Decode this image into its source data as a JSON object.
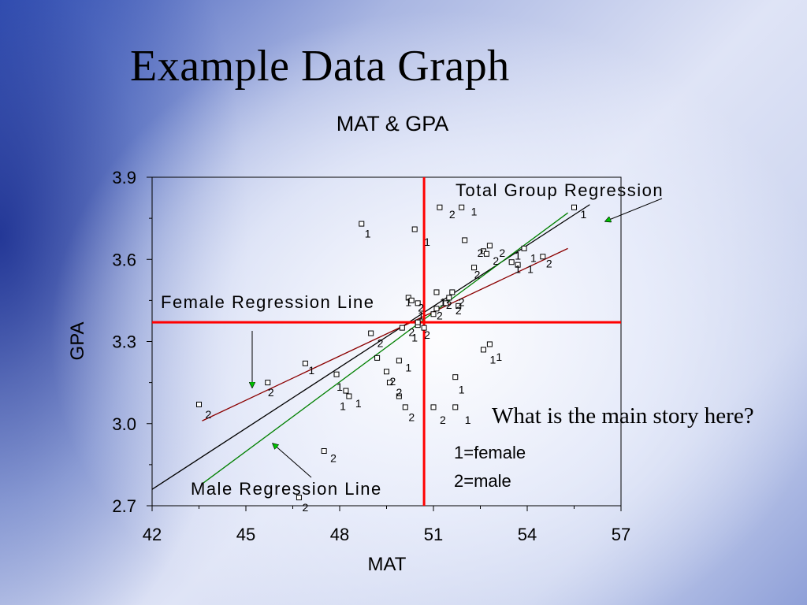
{
  "slide": {
    "title": "Example Data Graph",
    "question": "What is the main story here?",
    "legend": [
      "1=female",
      "2=male"
    ]
  },
  "chart_data": {
    "type": "scatter",
    "title": "MAT & GPA",
    "xlabel": "MAT",
    "ylabel": "GPA",
    "xlim": [
      42,
      57
    ],
    "ylim": [
      2.7,
      3.9
    ],
    "xticks": [
      "42",
      "45",
      "48",
      "51",
      "54",
      "57"
    ],
    "yticks": [
      "2.7",
      "3.0",
      "3.3",
      "3.6",
      "3.9"
    ],
    "grid": false,
    "series": [
      {
        "name": "1",
        "points": [
          [
            48.7,
            3.73
          ],
          [
            50.4,
            3.71
          ],
          [
            51.9,
            3.79
          ],
          [
            55.5,
            3.79
          ],
          [
            51.5,
            3.46
          ],
          [
            52.6,
            3.63
          ],
          [
            53.5,
            3.59
          ],
          [
            53.7,
            3.58
          ],
          [
            54.5,
            3.61
          ],
          [
            50.2,
            3.46
          ],
          [
            50.3,
            3.45
          ],
          [
            50.5,
            3.44
          ],
          [
            51.4,
            3.44
          ],
          [
            50.0,
            3.35
          ],
          [
            50.5,
            3.36
          ],
          [
            50.5,
            3.37
          ],
          [
            52.8,
            3.29
          ],
          [
            52.6,
            3.27
          ],
          [
            49.9,
            3.23
          ],
          [
            46.9,
            3.22
          ],
          [
            51.7,
            3.17
          ],
          [
            47.9,
            3.18
          ],
          [
            48.2,
            3.12
          ],
          [
            48.3,
            3.1
          ]
        ],
        "color": "#000000"
      },
      {
        "name": "2",
        "points": [
          [
            51.2,
            3.79
          ],
          [
            52.0,
            3.67
          ],
          [
            52.8,
            3.65
          ],
          [
            52.7,
            3.62
          ],
          [
            53.9,
            3.64
          ],
          [
            52.3,
            3.57
          ],
          [
            51.1,
            3.48
          ],
          [
            51.6,
            3.48
          ],
          [
            51.8,
            3.43
          ],
          [
            51.1,
            3.42
          ],
          [
            51.0,
            3.4
          ],
          [
            49.0,
            3.33
          ],
          [
            49.2,
            3.24
          ],
          [
            49.5,
            3.19
          ],
          [
            49.6,
            3.15
          ],
          [
            49.9,
            3.1
          ],
          [
            50.1,
            3.06
          ],
          [
            51.0,
            3.06
          ],
          [
            51.7,
            3.06
          ],
          [
            45.7,
            3.15
          ],
          [
            43.5,
            3.07
          ],
          [
            47.5,
            2.9
          ],
          [
            46.7,
            2.73
          ],
          [
            50.7,
            3.35
          ]
        ],
        "color": "#000000"
      }
    ],
    "point_labels": [
      {
        "text": "1",
        "x": 48.9,
        "y": 3.68
      },
      {
        "text": "1",
        "x": 50.8,
        "y": 3.65
      },
      {
        "text": "2",
        "x": 51.6,
        "y": 3.75
      },
      {
        "text": "1",
        "x": 52.3,
        "y": 3.76
      },
      {
        "text": "1",
        "x": 55.8,
        "y": 3.75
      },
      {
        "text": "2",
        "x": 52.5,
        "y": 3.61
      },
      {
        "text": "2",
        "x": 53.2,
        "y": 3.61
      },
      {
        "text": "2",
        "x": 53.0,
        "y": 3.58
      },
      {
        "text": "1",
        "x": 53.7,
        "y": 3.6
      },
      {
        "text": "1",
        "x": 54.2,
        "y": 3.59
      },
      {
        "text": "2",
        "x": 54.7,
        "y": 3.57
      },
      {
        "text": "2",
        "x": 52.4,
        "y": 3.53
      },
      {
        "text": "1",
        "x": 53.7,
        "y": 3.55
      },
      {
        "text": "1",
        "x": 54.1,
        "y": 3.55
      },
      {
        "text": "1",
        "x": 50.2,
        "y": 3.43
      },
      {
        "text": "2",
        "x": 50.6,
        "y": 3.41
      },
      {
        "text": "2",
        "x": 51.5,
        "y": 3.42
      },
      {
        "text": "1",
        "x": 51.3,
        "y": 3.43
      },
      {
        "text": "2",
        "x": 51.9,
        "y": 3.43
      },
      {
        "text": "2",
        "x": 51.8,
        "y": 3.4
      },
      {
        "text": "2",
        "x": 51.2,
        "y": 3.38
      },
      {
        "text": "1",
        "x": 50.6,
        "y": 3.38
      },
      {
        "text": "2",
        "x": 50.3,
        "y": 3.32
      },
      {
        "text": "1",
        "x": 50.4,
        "y": 3.3
      },
      {
        "text": "2",
        "x": 50.8,
        "y": 3.31
      },
      {
        "text": "2",
        "x": 49.3,
        "y": 3.28
      },
      {
        "text": "1",
        "x": 52.9,
        "y": 3.22
      },
      {
        "text": "1",
        "x": 53.1,
        "y": 3.23
      },
      {
        "text": "1",
        "x": 50.2,
        "y": 3.19
      },
      {
        "text": "1",
        "x": 47.1,
        "y": 3.18
      },
      {
        "text": "2",
        "x": 49.7,
        "y": 3.14
      },
      {
        "text": "2",
        "x": 49.9,
        "y": 3.1
      },
      {
        "text": "1",
        "x": 48.0,
        "y": 3.12
      },
      {
        "text": "1",
        "x": 51.9,
        "y": 3.11
      },
      {
        "text": "2",
        "x": 45.8,
        "y": 3.1
      },
      {
        "text": "1",
        "x": 48.1,
        "y": 3.05
      },
      {
        "text": "1",
        "x": 48.6,
        "y": 3.06
      },
      {
        "text": "2",
        "x": 50.3,
        "y": 3.01
      },
      {
        "text": "2",
        "x": 51.3,
        "y": 3.0
      },
      {
        "text": "1",
        "x": 52.1,
        "y": 3.0
      },
      {
        "text": "2",
        "x": 43.8,
        "y": 3.02
      },
      {
        "text": "2",
        "x": 47.8,
        "y": 2.86
      },
      {
        "text": "2",
        "x": 46.9,
        "y": 2.68
      }
    ],
    "regression_lines": [
      {
        "label": "Total Group Regression",
        "color": "#000000",
        "x": [
          42,
          56
        ],
        "y": [
          2.76,
          3.8
        ]
      },
      {
        "label": "Male Regression Line",
        "color": "#008000",
        "x": [
          43.6,
          55.3
        ],
        "y": [
          2.78,
          3.77
        ]
      },
      {
        "label": "Female Regression Line",
        "color": "#8b0000",
        "x": [
          43.6,
          55.3
        ],
        "y": [
          3.01,
          3.64
        ]
      }
    ],
    "reference_lines": {
      "color": "#ff0000",
      "x_mean": 50.7,
      "y_mean": 3.37
    },
    "annotations": [
      "Total Group Regression",
      "Female Regression Line",
      "Male Regression Line"
    ]
  }
}
